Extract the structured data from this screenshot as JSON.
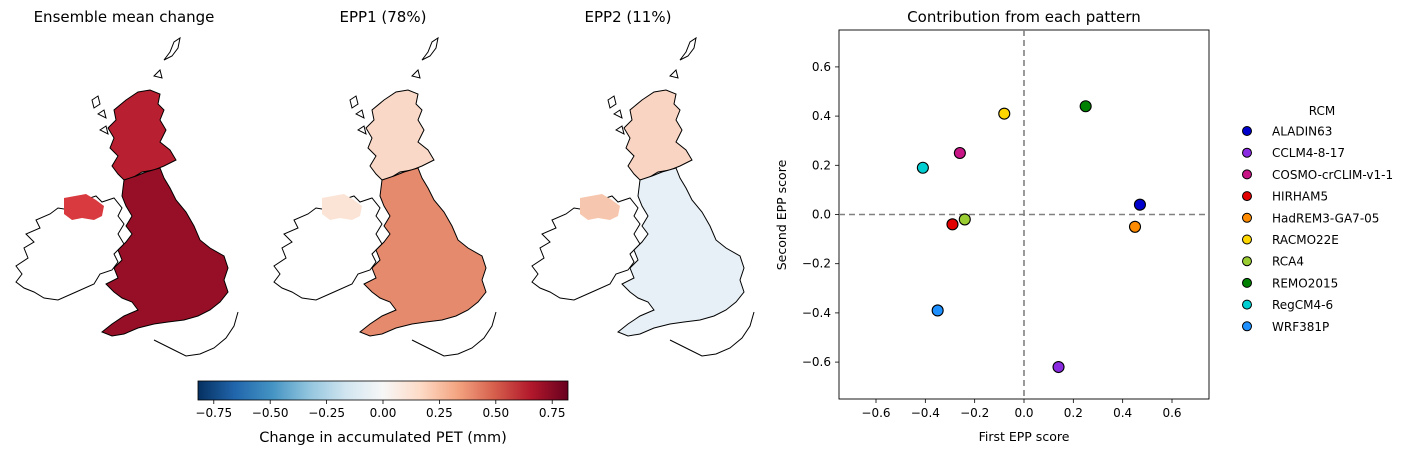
{
  "maps": [
    {
      "title": "Ensemble mean change",
      "fill": "#960f26",
      "fill_scotland": "#b81f30",
      "fill_ni": "#d93a3f",
      "fill_ire": "#ffffff"
    },
    {
      "title": "EPP1 (78%)",
      "fill": "#e58a6d",
      "fill_scotland": "#f9d8c7",
      "fill_ni": "#fbe4d6",
      "fill_ire": "#ffffff"
    },
    {
      "title": "EPP2 (11%)",
      "fill": "#e7f0f6",
      "fill_scotland": "#f9d4c2",
      "fill_ni": "#f7c6ae",
      "fill_ire": "#ffffff"
    }
  ],
  "colorbar": {
    "label": "Change in accumulated PET (mm)",
    "ticks": [
      "−0.75",
      "−0.50",
      "−0.25",
      "0.00",
      "0.25",
      "0.50",
      "0.75"
    ],
    "tick_values": [
      -0.75,
      -0.5,
      -0.25,
      0,
      0.25,
      0.5,
      0.75
    ],
    "range": [
      -0.82,
      0.82
    ],
    "colormap": "RdBu_r"
  },
  "chart_data": {
    "type": "scatter",
    "title": "Contribution from each pattern",
    "xlabel": "First EPP score",
    "ylabel": "Second EPP score",
    "xlim": [
      -0.75,
      0.75
    ],
    "ylim": [
      -0.75,
      0.75
    ],
    "xticks": [
      -0.6,
      -0.4,
      -0.2,
      0.0,
      0.2,
      0.4,
      0.6
    ],
    "yticks": [
      -0.6,
      -0.4,
      -0.2,
      0.0,
      0.2,
      0.4,
      0.6
    ],
    "xtick_labels": [
      "−0.6",
      "−0.4",
      "−0.2",
      "0.0",
      "0.2",
      "0.4",
      "0.6"
    ],
    "ytick_labels": [
      "−0.6",
      "−0.4",
      "−0.2",
      "0.0",
      "0.2",
      "0.4",
      "0.6"
    ],
    "reference_lines": {
      "x": 0,
      "y": 0,
      "style": "dashed",
      "color": "#808080"
    },
    "grid": false,
    "legend_title": "RCM",
    "legend_position": "right outside",
    "series": [
      {
        "name": "ALADIN63",
        "color": "#0000cd",
        "x": 0.47,
        "y": 0.04
      },
      {
        "name": "CCLM4-8-17",
        "color": "#8a2be2",
        "x": 0.14,
        "y": -0.62
      },
      {
        "name": "COSMO-crCLIM-v1-1",
        "color": "#c71585",
        "x": -0.26,
        "y": 0.25
      },
      {
        "name": "HIRHAM5",
        "color": "#e30000",
        "x": -0.29,
        "y": -0.04
      },
      {
        "name": "HadREM3-GA7-05",
        "color": "#ff8c00",
        "x": 0.45,
        "y": -0.05
      },
      {
        "name": "RACMO22E",
        "color": "#ffd700",
        "x": -0.08,
        "y": 0.41
      },
      {
        "name": "RCA4",
        "color": "#9acd32",
        "x": -0.24,
        "y": -0.02
      },
      {
        "name": "REMO2015",
        "color": "#008000",
        "x": 0.25,
        "y": 0.44
      },
      {
        "name": "RegCM4-6",
        "color": "#00ced1",
        "x": -0.41,
        "y": 0.19
      },
      {
        "name": "WRF381P",
        "color": "#1e90ff",
        "x": -0.35,
        "y": -0.39
      }
    ]
  }
}
